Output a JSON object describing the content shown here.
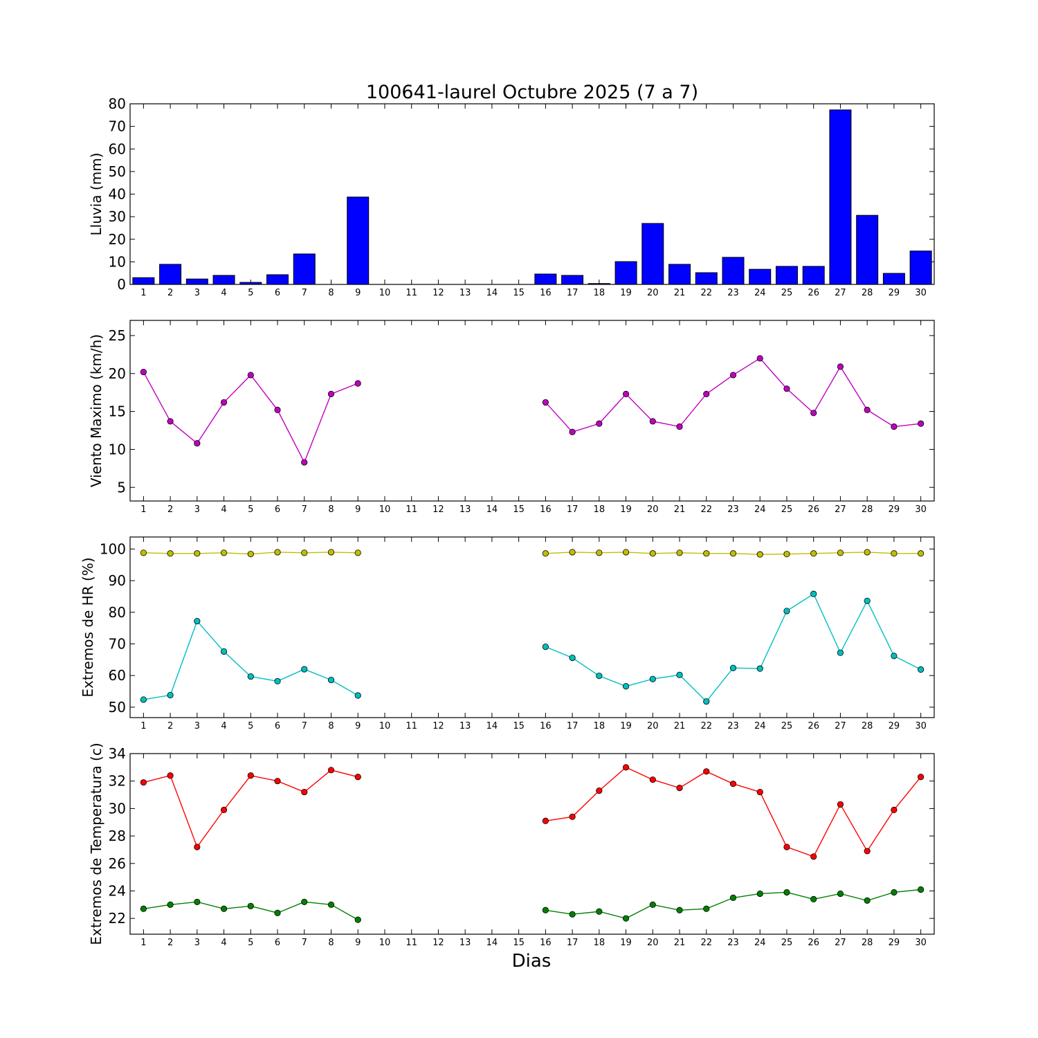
{
  "figure": {
    "title": "100641-laurel Octubre 2025  (7 a 7)",
    "xlabel": "Dias"
  },
  "colors": {
    "rain": "#0000ff",
    "wind": "#bf00bf",
    "hr_max": "#bfbf00",
    "hr_min": "#00bfbf",
    "temp_max": "#ff0000",
    "temp_min": "#008000"
  },
  "chart_data": [
    {
      "type": "bar",
      "ylabel": "Lluvia (mm)",
      "categories": [
        "1",
        "2",
        "3",
        "4",
        "5",
        "6",
        "7",
        "8",
        "9",
        "10",
        "11",
        "12",
        "13",
        "14",
        "15",
        "16",
        "17",
        "18",
        "19",
        "20",
        "21",
        "22",
        "23",
        "24",
        "25",
        "26",
        "27",
        "28",
        "29",
        "30"
      ],
      "values": [
        3.0,
        8.9,
        2.4,
        4.0,
        0.9,
        4.3,
        13.5,
        0,
        38.7,
        0,
        0,
        0,
        0,
        0,
        0,
        4.6,
        4.0,
        0.4,
        10.1,
        27.0,
        8.9,
        5.2,
        12.0,
        6.7,
        8.0,
        8.0,
        77.3,
        30.6,
        4.9,
        14.8
      ],
      "ylim": [
        0,
        80
      ],
      "yticks": [
        0,
        10,
        20,
        30,
        40,
        50,
        60,
        70,
        80
      ],
      "grid": false
    },
    {
      "type": "line",
      "ylabel": "Viento Maximo (km/h)",
      "x": [
        1,
        2,
        3,
        4,
        5,
        6,
        7,
        8,
        9,
        10,
        11,
        12,
        13,
        14,
        15,
        16,
        17,
        18,
        19,
        20,
        21,
        22,
        23,
        24,
        25,
        26,
        27,
        28,
        29,
        30
      ],
      "series": [
        {
          "color": "#bf00bf",
          "values": [
            20.2,
            13.7,
            10.8,
            16.2,
            19.8,
            15.2,
            8.3,
            17.3,
            18.7,
            null,
            null,
            null,
            null,
            null,
            null,
            16.2,
            12.3,
            13.4,
            17.3,
            13.7,
            13.0,
            17.3,
            19.8,
            22.0,
            18.0,
            14.8,
            20.9,
            15.2,
            13.0,
            13.4
          ]
        }
      ],
      "xlim": [
        0.5,
        30.5
      ],
      "ylim": [
        3.2,
        27
      ],
      "yticks": [
        5,
        10,
        15,
        20,
        25
      ],
      "grid": false
    },
    {
      "type": "line",
      "ylabel": "Extremos de HR (%)",
      "x": [
        1,
        2,
        3,
        4,
        5,
        6,
        7,
        8,
        9,
        10,
        11,
        12,
        13,
        14,
        15,
        16,
        17,
        18,
        19,
        20,
        21,
        22,
        23,
        24,
        25,
        26,
        27,
        28,
        29,
        30
      ],
      "series": [
        {
          "color": "#bfbf00",
          "values": [
            98.8,
            98.6,
            98.6,
            98.8,
            98.4,
            99.0,
            98.8,
            99.0,
            98.8,
            null,
            null,
            null,
            null,
            null,
            null,
            98.6,
            99.0,
            98.8,
            99.0,
            98.6,
            98.8,
            98.6,
            98.6,
            98.3,
            98.4,
            98.6,
            98.8,
            99.0,
            98.6,
            98.6
          ]
        },
        {
          "color": "#00bfbf",
          "values": [
            52.4,
            53.8,
            77.2,
            67.6,
            59.7,
            58.2,
            62.0,
            58.6,
            53.7,
            null,
            null,
            null,
            null,
            null,
            null,
            69.1,
            65.6,
            59.9,
            56.6,
            58.9,
            60.2,
            51.8,
            62.4,
            62.2,
            80.4,
            85.8,
            67.2,
            83.6,
            66.2,
            61.9
          ]
        }
      ],
      "xlim": [
        0.5,
        30.5
      ],
      "ylim": [
        46.7,
        103.8
      ],
      "yticks": [
        50,
        60,
        70,
        80,
        90,
        100
      ],
      "grid": false
    },
    {
      "type": "line",
      "ylabel": "Extremos de Temperatura (c)",
      "x": [
        1,
        2,
        3,
        4,
        5,
        6,
        7,
        8,
        9,
        10,
        11,
        12,
        13,
        14,
        15,
        16,
        17,
        18,
        19,
        20,
        21,
        22,
        23,
        24,
        25,
        26,
        27,
        28,
        29,
        30
      ],
      "series": [
        {
          "color": "#ff0000",
          "values": [
            31.9,
            32.4,
            27.2,
            29.9,
            32.4,
            32.0,
            31.2,
            32.8,
            32.3,
            null,
            null,
            null,
            null,
            null,
            null,
            29.1,
            29.4,
            31.3,
            33.0,
            32.1,
            31.5,
            32.7,
            31.8,
            31.2,
            27.2,
            26.5,
            30.3,
            26.9,
            29.9,
            32.3
          ]
        },
        {
          "color": "#008000",
          "values": [
            22.7,
            23.0,
            23.2,
            22.7,
            22.9,
            22.4,
            23.2,
            23.0,
            21.9,
            null,
            null,
            null,
            null,
            null,
            null,
            22.6,
            22.3,
            22.5,
            22.0,
            23.0,
            22.6,
            22.7,
            23.5,
            23.8,
            23.9,
            23.4,
            23.8,
            23.3,
            23.9,
            24.1
          ]
        }
      ],
      "xlim": [
        0.5,
        30.5
      ],
      "ylim": [
        20.85,
        34
      ],
      "yticks": [
        22,
        24,
        26,
        28,
        30,
        32,
        34
      ],
      "grid": false
    }
  ]
}
